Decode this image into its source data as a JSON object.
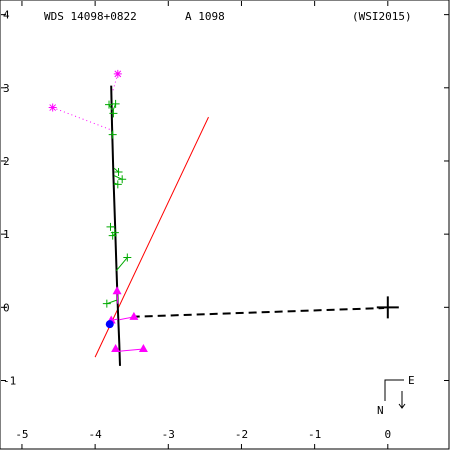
{
  "header": {
    "system": "WDS 14098+0822",
    "designation": "A  1098",
    "reference": "(WSI2015)"
  },
  "compass": {
    "east_label": "E",
    "north_label": "N"
  },
  "colors": {
    "axes": "#000000",
    "orbit": "#000000",
    "measure_plus": "#00aa00",
    "measure_star": "#ff00ff",
    "recent_triangle": "#ff00ff",
    "node_line": "#ff0000",
    "primary": "#0000ff"
  },
  "chart_data": {
    "type": "scatter",
    "title": "WDS 14098+0822   A  1098   (WSI2015)",
    "xlim": [
      -5.3,
      0.85
    ],
    "ylim": [
      -1.95,
      4.2
    ],
    "x_ticks": [
      -5,
      -4,
      -3,
      -2,
      -1,
      0
    ],
    "y_ticks": [
      -1,
      0,
      1,
      2,
      3,
      4
    ],
    "x_tick_labels": [
      "-5",
      "-4",
      "-3",
      "-2",
      "-1",
      "0"
    ],
    "y_tick_labels": [
      "-1",
      "0",
      "1",
      "2",
      "3",
      "4"
    ],
    "primary_star": [
      0,
      0
    ],
    "orbit": [
      [
        -3.78,
        3.03
      ],
      [
        -3.77,
        2.5
      ],
      [
        -3.75,
        1.8
      ],
      [
        -3.73,
        1.2
      ],
      [
        -3.71,
        0.6
      ],
      [
        -3.69,
        0.0
      ],
      [
        -3.67,
        -0.5
      ],
      [
        -3.66,
        -0.8
      ]
    ],
    "node_line": [
      [
        -4.0,
        -0.68
      ],
      [
        -2.45,
        2.6
      ]
    ],
    "periastron_line": [
      [
        -3.5,
        -0.13
      ],
      [
        -0.05,
        -0.01
      ]
    ],
    "measures_plus": [
      {
        "pos": [
          -3.72,
          2.78
        ],
        "resid": [
          -3.76,
          2.68
        ]
      },
      {
        "pos": [
          -3.81,
          2.77
        ],
        "resid": [
          -3.77,
          2.7
        ]
      },
      {
        "pos": [
          -3.75,
          2.65
        ],
        "resid": [
          -3.77,
          2.66
        ]
      },
      {
        "pos": [
          -3.76,
          2.36
        ],
        "resid": [
          -3.77,
          2.4
        ]
      },
      {
        "pos": [
          -3.68,
          1.85
        ],
        "resid": [
          -3.74,
          1.9
        ]
      },
      {
        "pos": [
          -3.63,
          1.75
        ],
        "resid": [
          -3.74,
          1.8
        ]
      },
      {
        "pos": [
          -3.69,
          1.68
        ],
        "resid": [
          -3.74,
          1.7
        ]
      },
      {
        "pos": [
          -3.79,
          1.1
        ],
        "resid": [
          -3.73,
          1.1
        ]
      },
      {
        "pos": [
          -3.73,
          1.02
        ],
        "resid": [
          -3.73,
          1.04
        ]
      },
      {
        "pos": [
          -3.76,
          0.98
        ],
        "resid": [
          -3.73,
          1.0
        ]
      },
      {
        "pos": [
          -3.56,
          0.68
        ],
        "resid": [
          -3.71,
          0.5
        ]
      },
      {
        "pos": [
          -3.84,
          0.05
        ],
        "resid": [
          -3.7,
          0.1
        ]
      }
    ],
    "measures_star": [
      {
        "pos": [
          -4.58,
          2.73
        ],
        "resid": [
          -3.77,
          2.42
        ]
      },
      {
        "pos": [
          -3.69,
          3.19
        ],
        "resid": [
          -3.76,
          2.95
        ]
      }
    ],
    "recent_triangles": [
      {
        "pos": [
          -3.7,
          0.22
        ],
        "resid": [
          -3.69,
          0.05
        ]
      },
      {
        "pos": [
          -3.78,
          -0.18
        ],
        "resid": [
          -3.69,
          -0.16
        ]
      },
      {
        "pos": [
          -3.47,
          -0.13
        ],
        "resid": [
          -3.67,
          -0.17
        ]
      },
      {
        "pos": [
          -3.72,
          -0.57
        ],
        "resid": [
          -3.68,
          -0.6
        ]
      },
      {
        "pos": [
          -3.34,
          -0.57
        ],
        "resid": [
          -3.67,
          -0.6
        ]
      }
    ],
    "companion_dot": [
      -3.8,
      -0.23
    ]
  }
}
